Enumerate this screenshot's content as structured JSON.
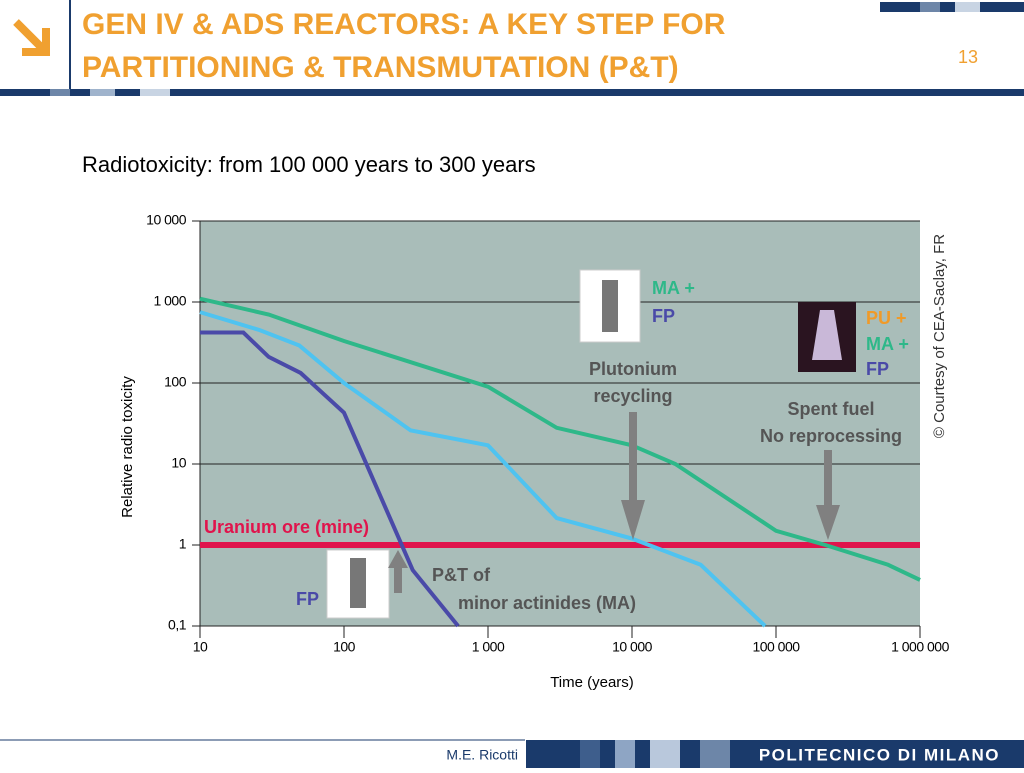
{
  "header": {
    "title_lines": [
      "GEN IV & ADS REACTORS: A KEY STEP FOR",
      "PARTITIONING & TRANSMUTATION (P&T)"
    ],
    "page": "13"
  },
  "subtitle": "Radiotoxicity: from 100 000 years to 300 years",
  "footer": {
    "author": "M.E. Ricotti",
    "institution": "POLITECNICO DI MILANO"
  },
  "chart_data": {
    "type": "line",
    "log_x": true,
    "log_y": true,
    "x_label": "Time (years)",
    "y_label": "Relative radio toxicity",
    "xlim": [
      10,
      1000000
    ],
    "ylim": [
      0.1,
      10000
    ],
    "xticks": [
      10,
      100,
      {
        "value": 1000,
        "label": "1 000"
      },
      {
        "value": 10000,
        "label": "10 000"
      },
      {
        "value": 100000,
        "label": "100 000"
      },
      {
        "value": 1000000,
        "label": "1 000 000"
      }
    ],
    "yticks": [
      {
        "value": 0.1,
        "label": "0,1"
      },
      1,
      10,
      100,
      {
        "value": 1000,
        "label": "1 000"
      },
      {
        "value": 10000,
        "label": "10 000"
      }
    ],
    "grid": true,
    "background": "#a9bdb9",
    "series": [
      {
        "color": "#2eb889",
        "x": [
          10,
          30,
          100,
          1000,
          3000,
          10000,
          20000,
          100000,
          220000,
          600000,
          1000000
        ],
        "values": [
          1100,
          700,
          330,
          90,
          28,
          17,
          10,
          1.5,
          1,
          0.57,
          0.37
        ]
      },
      {
        "color": "#4fc3f0",
        "x": [
          10,
          26,
          49,
          100,
          290,
          1000,
          3000,
          10000,
          30000,
          84000
        ],
        "values": [
          750,
          450,
          290,
          100,
          26,
          17,
          2.15,
          1.2,
          0.57,
          0.1
        ]
      },
      {
        "color": "#4a4aa8",
        "x": [
          10,
          20,
          30,
          50,
          100,
          300,
          620
        ],
        "values": [
          420,
          420,
          210,
          133,
          43,
          0.49,
          0.1
        ]
      }
    ],
    "reference": {
      "value": 1,
      "label": "Uranium ore (mine)",
      "color": "#e0144c"
    },
    "annotations": [
      {
        "text": "MA +",
        "color": "#2eb889"
      },
      {
        "text": "FP",
        "color": "#4a4aa8"
      },
      {
        "text": "Plutonium",
        "color": "#555555"
      },
      {
        "text": "recycling",
        "color": "#555555"
      },
      {
        "text": "PU +",
        "color": "#f09a28"
      },
      {
        "text": "MA +",
        "color": "#2eb889"
      },
      {
        "text": "FP",
        "color": "#4a4aa8"
      },
      {
        "text": "Spent fuel",
        "color": "#555555"
      },
      {
        "text": "No reprocessing",
        "color": "#555555"
      },
      {
        "text": "P&T of",
        "color": "#555555"
      },
      {
        "text": "minor actinides (MA)",
        "color": "#555555"
      },
      {
        "text": "FP",
        "color": "#4a4aa8"
      }
    ],
    "credit": "© Courtesy of CEA-Saclay, FR"
  }
}
